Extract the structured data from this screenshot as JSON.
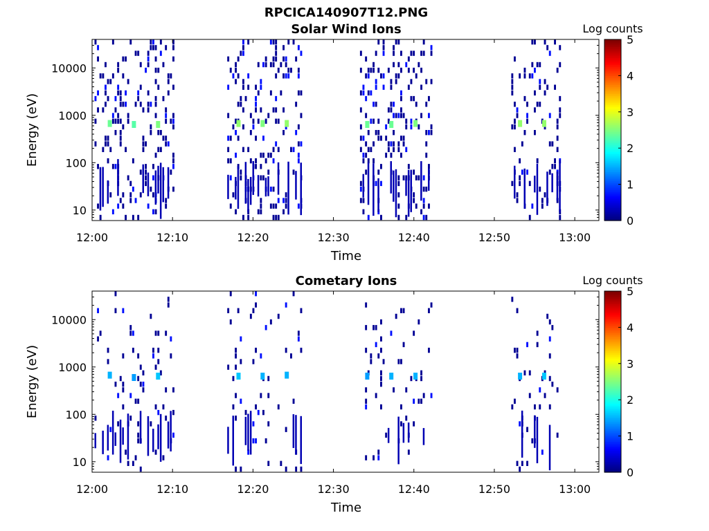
{
  "figure_title": "RPCICA140907T12.PNG",
  "colors": {
    "colormap": [
      "#00007f",
      "#0000ff",
      "#007fff",
      "#00ffff",
      "#7fff7f",
      "#ffff00",
      "#ff7f00",
      "#ff0000",
      "#7f0000"
    ],
    "axis": "#000000",
    "background": "#ffffff"
  },
  "chart_data": [
    {
      "type": "heatmap",
      "title": "Solar Wind Ions",
      "xlabel": "Time",
      "ylabel": "Energy (eV)",
      "y_scale": "log",
      "xlim": [
        "12:00",
        "13:03"
      ],
      "ylim": [
        6,
        40000
      ],
      "x_ticks": [
        "12:00",
        "12:10",
        "12:20",
        "12:30",
        "12:40",
        "12:50",
        "13:00"
      ],
      "y_ticks": [
        "10",
        "100",
        "1000",
        "10000"
      ],
      "colorbar": {
        "label": "Log counts",
        "range": [
          0,
          5
        ],
        "ticks": [
          "0",
          "1",
          "2",
          "3",
          "4",
          "5"
        ]
      },
      "scan_windows_minutes": [
        [
          0.3,
          10.2
        ],
        [
          16.8,
          26.0
        ],
        [
          33.3,
          42.2
        ],
        [
          52.1,
          58.3
        ]
      ],
      "peaks": [
        {
          "time": "12:02",
          "energy_ev": 650,
          "log_counts": 2.4
        },
        {
          "time": "12:05",
          "energy_ev": 620,
          "log_counts": 2.3
        },
        {
          "time": "12:08",
          "energy_ev": 620,
          "log_counts": 2.5
        },
        {
          "time": "12:18",
          "energy_ev": 650,
          "log_counts": 2.6
        },
        {
          "time": "12:21",
          "energy_ev": 650,
          "log_counts": 2.5
        },
        {
          "time": "12:24",
          "energy_ev": 650,
          "log_counts": 2.6
        },
        {
          "time": "12:34",
          "energy_ev": 620,
          "log_counts": 2.4
        },
        {
          "time": "12:37",
          "energy_ev": 620,
          "log_counts": 2.4
        },
        {
          "time": "12:40",
          "energy_ev": 650,
          "log_counts": 2.5
        },
        {
          "time": "12:53",
          "energy_ev": 650,
          "log_counts": 2.6
        },
        {
          "time": "12:56",
          "energy_ev": 650,
          "log_counts": 2.6
        }
      ],
      "noise_density": 0.16,
      "noise_energy_max_ev": 40000
    },
    {
      "type": "heatmap",
      "title": "Cometary Ions",
      "xlabel": "Time",
      "ylabel": "Energy (eV)",
      "y_scale": "log",
      "xlim": [
        "12:00",
        "13:03"
      ],
      "ylim": [
        6,
        40000
      ],
      "x_ticks": [
        "12:00",
        "12:10",
        "12:20",
        "12:30",
        "12:40",
        "12:50",
        "13:00"
      ],
      "y_ticks": [
        "10",
        "100",
        "1000",
        "10000"
      ],
      "colorbar": {
        "label": "Log counts",
        "range": [
          0,
          5
        ],
        "ticks": [
          "0",
          "1",
          "2",
          "3",
          "4",
          "5"
        ]
      },
      "scan_windows_minutes": [
        [
          0.3,
          10.2
        ],
        [
          16.8,
          26.0
        ],
        [
          33.3,
          42.2
        ],
        [
          52.1,
          58.3
        ]
      ],
      "peaks": [
        {
          "time": "12:02",
          "energy_ev": 650,
          "log_counts": 1.5
        },
        {
          "time": "12:05",
          "energy_ev": 580,
          "log_counts": 1.4
        },
        {
          "time": "12:08",
          "energy_ev": 620,
          "log_counts": 1.6
        },
        {
          "time": "12:18",
          "energy_ev": 620,
          "log_counts": 1.6
        },
        {
          "time": "12:21",
          "energy_ev": 620,
          "log_counts": 1.5
        },
        {
          "time": "12:24",
          "energy_ev": 650,
          "log_counts": 1.5
        },
        {
          "time": "12:34",
          "energy_ev": 620,
          "log_counts": 1.4
        },
        {
          "time": "12:37",
          "energy_ev": 620,
          "log_counts": 1.5
        },
        {
          "time": "12:40",
          "energy_ev": 620,
          "log_counts": 1.5
        },
        {
          "time": "12:53",
          "energy_ev": 620,
          "log_counts": 1.5
        },
        {
          "time": "12:56",
          "energy_ev": 620,
          "log_counts": 1.6
        }
      ],
      "noise_density": 0.05,
      "noise_energy_max_ev": 40000
    }
  ]
}
